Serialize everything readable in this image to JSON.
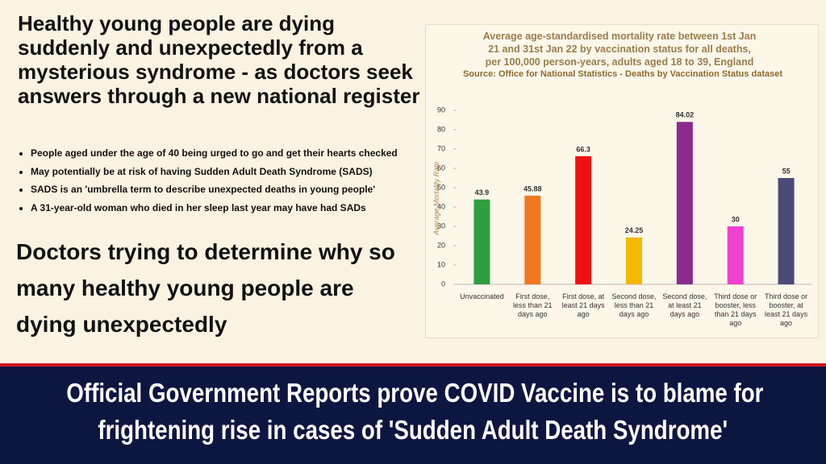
{
  "headline": "Healthy young people are dying suddenly and unexpectedly from a mysterious syndrome - as doctors seek answers through a new national register",
  "bullets": [
    "People aged under the age of 40 being urged to go and get their hearts checked",
    "May potentially be at risk of having Sudden Adult Death Syndrome (SADS)",
    "SADS is an 'umbrella term to describe unexpected deaths in young people'",
    "A 31-year-old woman who died in her sleep last year may have had SADs"
  ],
  "subheadline": "Doctors trying to determine why so many healthy young people are dying unexpectedly",
  "banner": [
    "Official Government Reports prove COVID Vaccine is to blame for",
    "frightening rise in cases of 'Sudden Adult Death Syndrome'"
  ],
  "chart_data": {
    "type": "bar",
    "title": "Average age-standardised mortality rate between 1st Jan 21 and 31st Jan 22 by vaccination status for all deaths, per 100,000 person-years, adults aged 18 to 39, England",
    "subtitle": "Source: Office for National Statistics - Deaths by Vaccination Status dataset",
    "y_label": "Average Mortality Rate",
    "categories": [
      "Unvaccinated",
      "First dose, less than 21 days ago",
      "First dose, at least 21 days ago",
      "Second dose, less than 21 days ago",
      "Second dose, at least 21 days ago",
      "Third dose or booster, less than 21 days ago",
      "Third dose or booster, at least 21 days ago"
    ],
    "values": [
      43.9,
      45.88,
      66.3,
      24.25,
      84.02,
      30,
      55
    ],
    "colors": [
      "#2e9e3e",
      "#f07820",
      "#ee1111",
      "#f5b800",
      "#8b2a8e",
      "#f040d0",
      "#4b4a78"
    ],
    "ylim": [
      0,
      90
    ],
    "yticks": [
      0,
      10,
      20,
      30,
      40,
      50,
      60,
      70,
      80,
      90
    ]
  }
}
